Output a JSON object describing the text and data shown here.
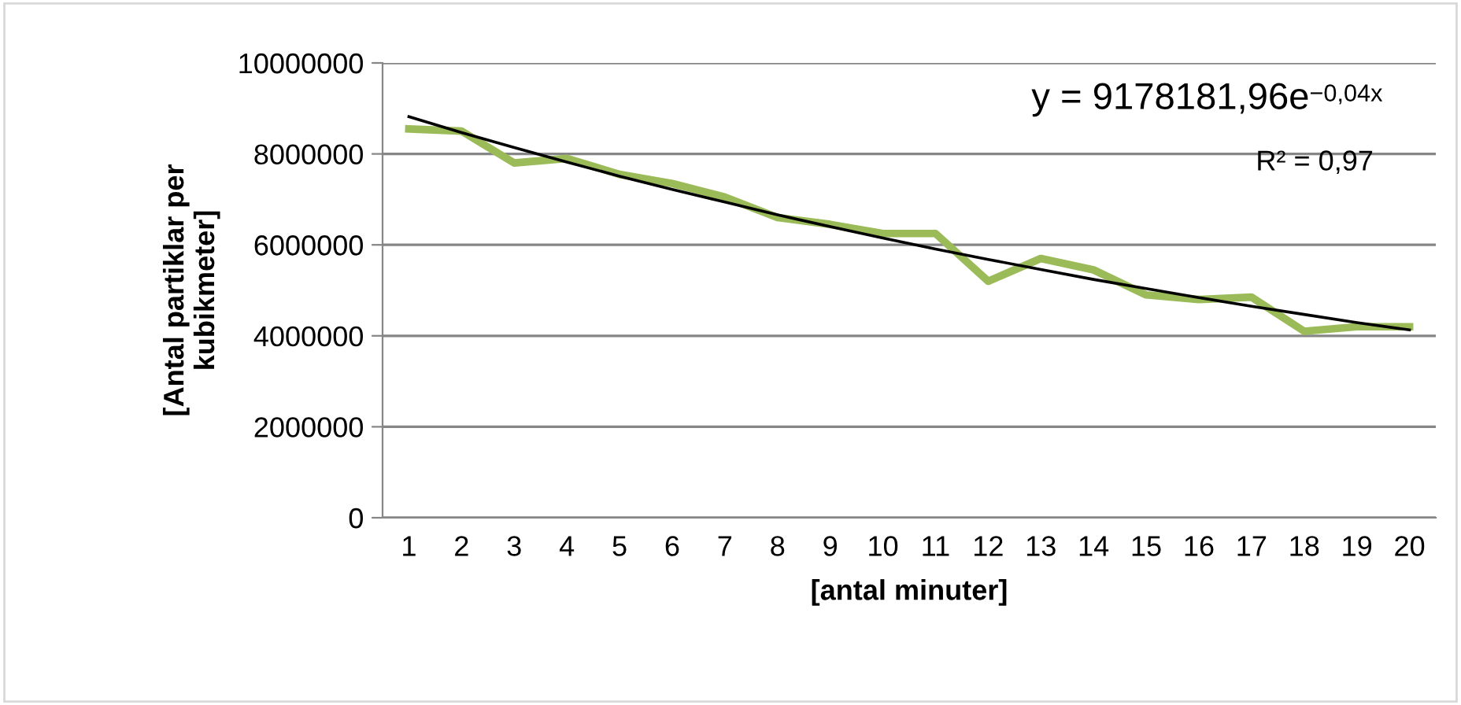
{
  "chart_data": {
    "type": "line",
    "xlabel": "[antal minuter]",
    "ylabel": "[Antal partiklar per\nkubikmeter]",
    "categories": [
      "1",
      "2",
      "3",
      "4",
      "5",
      "6",
      "7",
      "8",
      "9",
      "10",
      "11",
      "12",
      "13",
      "14",
      "15",
      "16",
      "17",
      "18",
      "19",
      "20"
    ],
    "series": [
      {
        "color": "#9bbb59",
        "values": [
          8550000,
          8500000,
          7800000,
          7900000,
          7550000,
          7350000,
          7050000,
          6600000,
          6450000,
          6250000,
          6250000,
          5200000,
          5700000,
          5450000,
          4900000,
          4800000,
          4850000,
          4100000,
          4200000,
          4200000
        ]
      },
      {
        "color": "#000000",
        "values": [
          8820000,
          8470000,
          8140000,
          7820000,
          7510000,
          7220000,
          6940000,
          6660000,
          6400000,
          6150000,
          5910000,
          5680000,
          5460000,
          5240000,
          5040000,
          4840000,
          4650000,
          4470000,
          4290000,
          4130000
        ]
      }
    ],
    "ylim": [
      0,
      10000000
    ],
    "yticks": [
      0,
      2000000,
      4000000,
      6000000,
      8000000,
      10000000
    ],
    "grid": "y",
    "legend": false,
    "annotations": [
      "y = 9178181,96e$^{−0,04x}$",
      "R² = 0,97"
    ]
  }
}
